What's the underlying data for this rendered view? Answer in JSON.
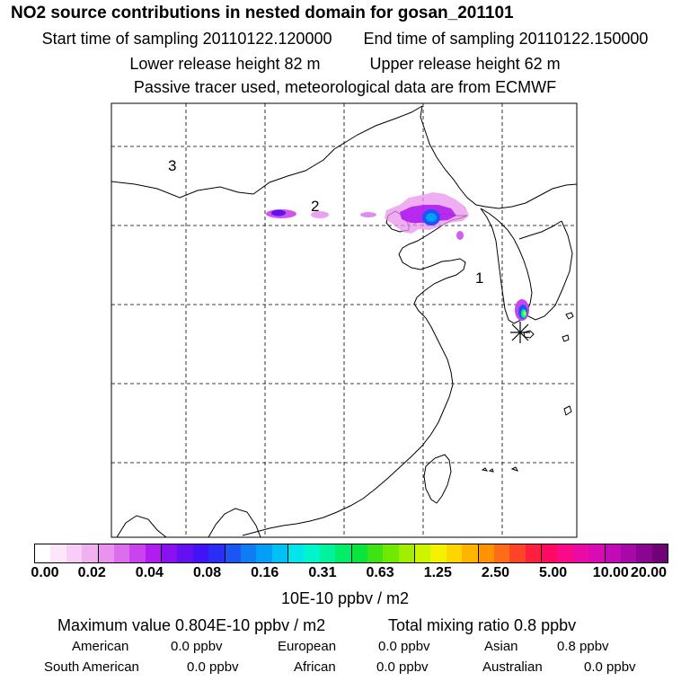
{
  "header": {
    "title": "NO2 source contributions in nested domain for gosan_201101",
    "start_time": "Start time of sampling 20110122.120000",
    "end_time": "End time of sampling 20110122.150000",
    "lower_release": "Lower release height   82 m",
    "upper_release": "Upper release height   62 m",
    "tracer_note": "Passive tracer used, meteorological data are from ECMWF"
  },
  "map": {
    "region_labels": [
      "1",
      "2",
      "3"
    ],
    "receptor": "gosan"
  },
  "legend": {
    "ticks": [
      "0.00",
      "0.02",
      "0.04",
      "0.08",
      "0.16",
      "0.31",
      "0.63",
      "1.25",
      "2.50",
      "5.00",
      "10.00",
      "20.00"
    ],
    "units": "10E-10 ppbv / m2",
    "colors": [
      "#ffffff",
      "#fde6fb",
      "#f8cdf6",
      "#f1b1f1",
      "#e992ee",
      "#dc6ded",
      "#c943ee",
      "#b01df0",
      "#8a12f2",
      "#6311f3",
      "#4214f5",
      "#2b2ef6",
      "#1c55f6",
      "#0f7cf6",
      "#039ff6",
      "#00c1f3",
      "#00e6ec",
      "#00f5cc",
      "#00f29c",
      "#00ed6a",
      "#0ae53d",
      "#3de314",
      "#70e800",
      "#a2ee00",
      "#cff400",
      "#f4f200",
      "#ffd500",
      "#ffb400",
      "#ff9200",
      "#ff6c18",
      "#ff4428",
      "#ff1f3e",
      "#ff0a62",
      "#f90a88",
      "#ec0aa4",
      "#da0ab4",
      "#c20ab6",
      "#a808a8",
      "#8a0590",
      "#6e0276"
    ]
  },
  "summary": {
    "max_value": "Maximum value  0.804E-10 ppbv / m2",
    "total_mixing": "Total mixing ratio        0.8 ppbv",
    "regions": [
      {
        "name": "American",
        "value": "0.0 ppbv"
      },
      {
        "name": "European",
        "value": "0.0 ppbv"
      },
      {
        "name": "Asian",
        "value": "0.8 ppbv"
      },
      {
        "name": "South American",
        "value": "0.0 ppbv"
      },
      {
        "name": "African",
        "value": "0.0 ppbv"
      },
      {
        "name": "Australian",
        "value": "0.0 ppbv"
      }
    ]
  }
}
